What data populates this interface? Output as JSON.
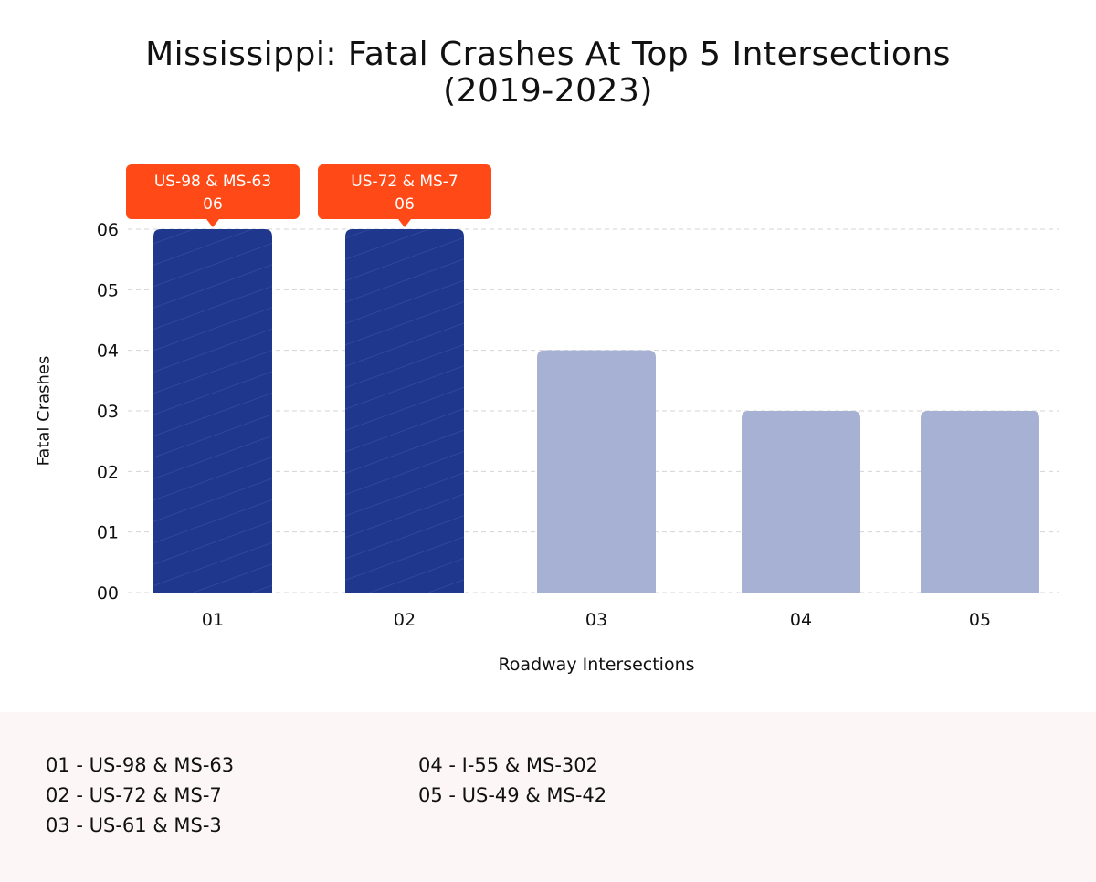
{
  "title_line1": "Mississippi: Fatal Crashes At Top 5 Intersections",
  "title_line2": "(2019-2023)",
  "colors": {
    "highlight_bar": "#1f378c",
    "normal_bar": "#a7b1d3",
    "callout": "#ff4a17",
    "footer_bg": "#fdf6f6"
  },
  "chart_data": {
    "type": "bar",
    "categories": [
      "01",
      "02",
      "03",
      "04",
      "05"
    ],
    "values": [
      6,
      6,
      4,
      3,
      3
    ],
    "highlighted": [
      true,
      true,
      false,
      false,
      false
    ],
    "xlabel": "Roadway Intersections",
    "ylabel": "Fatal Crashes",
    "ylim": [
      0,
      6
    ],
    "yticks": [
      "00",
      "01",
      "02",
      "03",
      "04",
      "05",
      "06"
    ],
    "grid": true,
    "callouts": [
      {
        "category": "01",
        "label": "US-98 & MS-63",
        "value": "06"
      },
      {
        "category": "02",
        "label": "US-72 & MS-7",
        "value": "06"
      }
    ]
  },
  "legend": {
    "col1": [
      "01 - US-98 & MS-63",
      "02 - US-72 & MS-7",
      "03 - US-61 & MS-3"
    ],
    "col2": [
      "04 - I-55 & MS-302",
      "05 - US-49 & MS-42"
    ]
  }
}
